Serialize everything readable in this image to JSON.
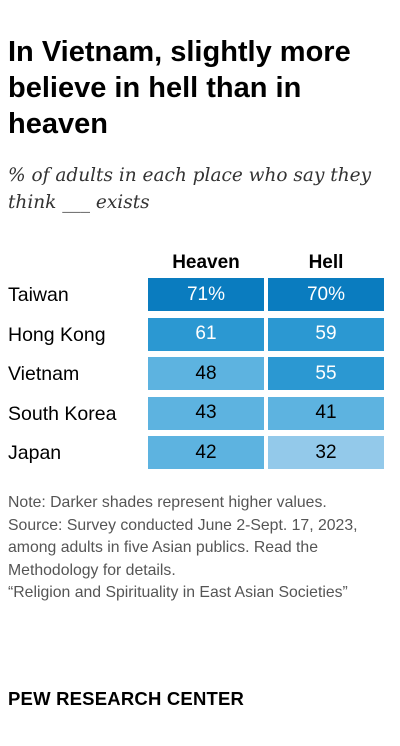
{
  "title": "In Vietnam, slightly more believe in hell than in heaven",
  "subtitle": "% of adults in each place who say they think ___ exists",
  "chart_data": {
    "type": "table",
    "columns": [
      "Heaven",
      "Hell"
    ],
    "rows": [
      {
        "label": "Taiwan",
        "values": [
          71,
          70
        ],
        "display": [
          "71%",
          "70%"
        ]
      },
      {
        "label": "Hong Kong",
        "values": [
          61,
          59
        ],
        "display": [
          "61",
          "59"
        ]
      },
      {
        "label": "Vietnam",
        "values": [
          48,
          55
        ],
        "display": [
          "48",
          "55"
        ]
      },
      {
        "label": "South Korea",
        "values": [
          43,
          41
        ],
        "display": [
          "43",
          "41"
        ]
      },
      {
        "label": "Japan",
        "values": [
          42,
          32
        ],
        "display": [
          "42",
          "32"
        ]
      }
    ],
    "shade_colors": {
      "dark": "#0a7cbf",
      "medium": "#2b98d2",
      "light": "#5db3e0",
      "lightest": "#93c9ea"
    },
    "text_colors": {
      "on_dark": "#ffffff",
      "on_light": "#000000"
    }
  },
  "notes": [
    "Note: Darker shades represent higher values.",
    "Source: Survey conducted June 2-Sept. 17, 2023, among adults in five Asian publics. Read the Methodology for details.",
    "“Religion and Spirituality in East Asian Societies”"
  ],
  "logo": "PEW RESEARCH CENTER"
}
